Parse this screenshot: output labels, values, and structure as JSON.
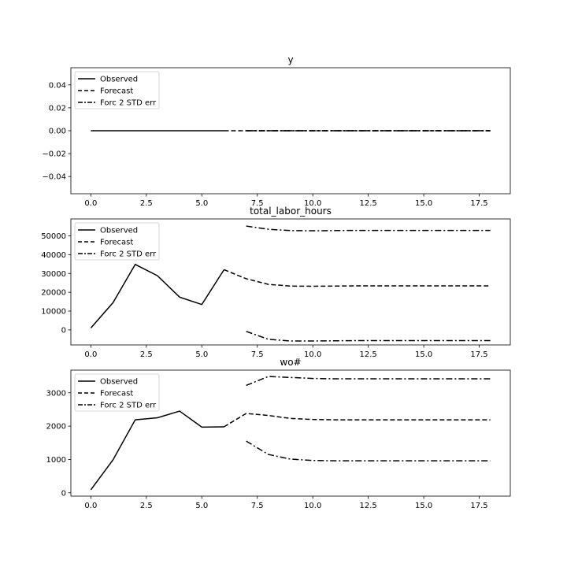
{
  "chart_data": [
    {
      "type": "line",
      "title": "y",
      "xlabel": "",
      "ylabel": "",
      "xlim": [
        -0.9,
        18.9
      ],
      "ylim": [
        -0.055,
        0.055
      ],
      "xticks": [
        0.0,
        2.5,
        5.0,
        7.5,
        10.0,
        12.5,
        15.0,
        17.5
      ],
      "xtick_labels": [
        "0.0",
        "2.5",
        "5.0",
        "7.5",
        "10.0",
        "12.5",
        "15.0",
        "17.5"
      ],
      "yticks": [
        0.04,
        0.02,
        0.0,
        -0.02,
        -0.04
      ],
      "ytick_labels": [
        "0.04",
        "0.02",
        "0.00",
        "−0.02",
        "−0.04"
      ],
      "legend": [
        "Observed",
        "Forecast",
        "Forc 2 STD err"
      ],
      "legend_position": "top-left",
      "grid": false,
      "series": [
        {
          "name": "Observed",
          "style": "solid",
          "x": [
            0,
            1,
            2,
            3,
            4,
            5,
            6
          ],
          "y": [
            0,
            0,
            0,
            0,
            0,
            0,
            0
          ]
        },
        {
          "name": "Forecast",
          "style": "dashed",
          "x": [
            6,
            7,
            8,
            9,
            10,
            11,
            12,
            13,
            14,
            15,
            16,
            17,
            18
          ],
          "y": [
            0,
            0,
            0,
            0,
            0,
            0,
            0,
            0,
            0,
            0,
            0,
            0,
            0
          ]
        },
        {
          "name": "Forc 2 STD err",
          "style": "dashdot",
          "x": [
            7,
            8,
            9,
            10,
            11,
            12,
            13,
            14,
            15,
            16,
            17,
            18
          ],
          "y": [
            0,
            0,
            0,
            0,
            0,
            0,
            0,
            0,
            0,
            0,
            0,
            0
          ]
        },
        {
          "name": "Forc 2 STD err",
          "style": "dashdot",
          "x": [
            7,
            8,
            9,
            10,
            11,
            12,
            13,
            14,
            15,
            16,
            17,
            18
          ],
          "y": [
            0,
            0,
            0,
            0,
            0,
            0,
            0,
            0,
            0,
            0,
            0,
            0
          ]
        }
      ]
    },
    {
      "type": "line",
      "title": "total_labor_hours",
      "xlabel": "",
      "ylabel": "",
      "xlim": [
        -0.9,
        18.9
      ],
      "ylim": [
        -8000,
        59000
      ],
      "xticks": [
        0.0,
        2.5,
        5.0,
        7.5,
        10.0,
        12.5,
        15.0,
        17.5
      ],
      "xtick_labels": [
        "0.0",
        "2.5",
        "5.0",
        "7.5",
        "10.0",
        "12.5",
        "15.0",
        "17.5"
      ],
      "yticks": [
        50000,
        40000,
        30000,
        20000,
        10000,
        0
      ],
      "ytick_labels": [
        "50000",
        "40000",
        "30000",
        "20000",
        "10000",
        "0"
      ],
      "legend": [
        "Observed",
        "Forecast",
        "Forc 2 STD err"
      ],
      "legend_position": "top-left",
      "grid": false,
      "series": [
        {
          "name": "Observed",
          "style": "solid",
          "x": [
            0,
            1,
            2,
            3,
            4,
            5,
            6
          ],
          "y": [
            1000,
            14500,
            34800,
            28800,
            17400,
            13500,
            32000
          ]
        },
        {
          "name": "Forecast",
          "style": "dashed",
          "x": [
            6,
            7,
            8,
            9,
            10,
            11,
            12,
            13,
            14,
            15,
            16,
            17,
            18
          ],
          "y": [
            32000,
            27200,
            24200,
            23300,
            23200,
            23300,
            23400,
            23400,
            23400,
            23400,
            23400,
            23400,
            23400
          ]
        },
        {
          "name": "Forc 2 STD err",
          "style": "dashdot",
          "x": [
            7,
            8,
            9,
            10,
            11,
            12,
            13,
            14,
            15,
            16,
            17,
            18
          ],
          "y": [
            55200,
            53500,
            52800,
            52700,
            52800,
            52900,
            52900,
            52900,
            52900,
            52900,
            52900,
            52900
          ]
        },
        {
          "name": "Forc 2 STD err",
          "style": "dashdot",
          "x": [
            7,
            8,
            9,
            10,
            11,
            12,
            13,
            14,
            15,
            16,
            17,
            18
          ],
          "y": [
            -800,
            -5000,
            -5900,
            -5900,
            -5800,
            -5700,
            -5700,
            -5700,
            -5700,
            -5700,
            -5700,
            -5700
          ]
        }
      ]
    },
    {
      "type": "line",
      "title": "wo#",
      "xlabel": "",
      "ylabel": "",
      "xlim": [
        -0.9,
        18.9
      ],
      "ylim": [
        -100,
        3680
      ],
      "xticks": [
        0.0,
        2.5,
        5.0,
        7.5,
        10.0,
        12.5,
        15.0,
        17.5
      ],
      "xtick_labels": [
        "0.0",
        "2.5",
        "5.0",
        "7.5",
        "10.0",
        "12.5",
        "15.0",
        "17.5"
      ],
      "yticks": [
        3000,
        2000,
        1000,
        0
      ],
      "ytick_labels": [
        "3000",
        "2000",
        "1000",
        "0"
      ],
      "legend": [
        "Observed",
        "Forecast",
        "Forc 2 STD err"
      ],
      "legend_position": "top-left",
      "grid": false,
      "series": [
        {
          "name": "Observed",
          "style": "solid",
          "x": [
            0,
            1,
            2,
            3,
            4,
            5,
            6
          ],
          "y": [
            90,
            990,
            2190,
            2250,
            2450,
            1970,
            1980
          ]
        },
        {
          "name": "Forecast",
          "style": "dashed",
          "x": [
            6,
            7,
            8,
            9,
            10,
            11,
            12,
            13,
            14,
            15,
            16,
            17,
            18
          ],
          "y": [
            1980,
            2380,
            2320,
            2230,
            2200,
            2190,
            2190,
            2190,
            2190,
            2190,
            2190,
            2190,
            2190
          ]
        },
        {
          "name": "Forc 2 STD err",
          "style": "dashdot",
          "x": [
            7,
            8,
            9,
            10,
            11,
            12,
            13,
            14,
            15,
            16,
            17,
            18
          ],
          "y": [
            3220,
            3490,
            3460,
            3430,
            3420,
            3420,
            3420,
            3420,
            3420,
            3420,
            3420,
            3420
          ]
        },
        {
          "name": "Forc 2 STD err",
          "style": "dashdot",
          "x": [
            7,
            8,
            9,
            10,
            11,
            12,
            13,
            14,
            15,
            16,
            17,
            18
          ],
          "y": [
            1550,
            1150,
            1010,
            970,
            960,
            960,
            960,
            960,
            960,
            960,
            960,
            960
          ]
        }
      ]
    }
  ]
}
